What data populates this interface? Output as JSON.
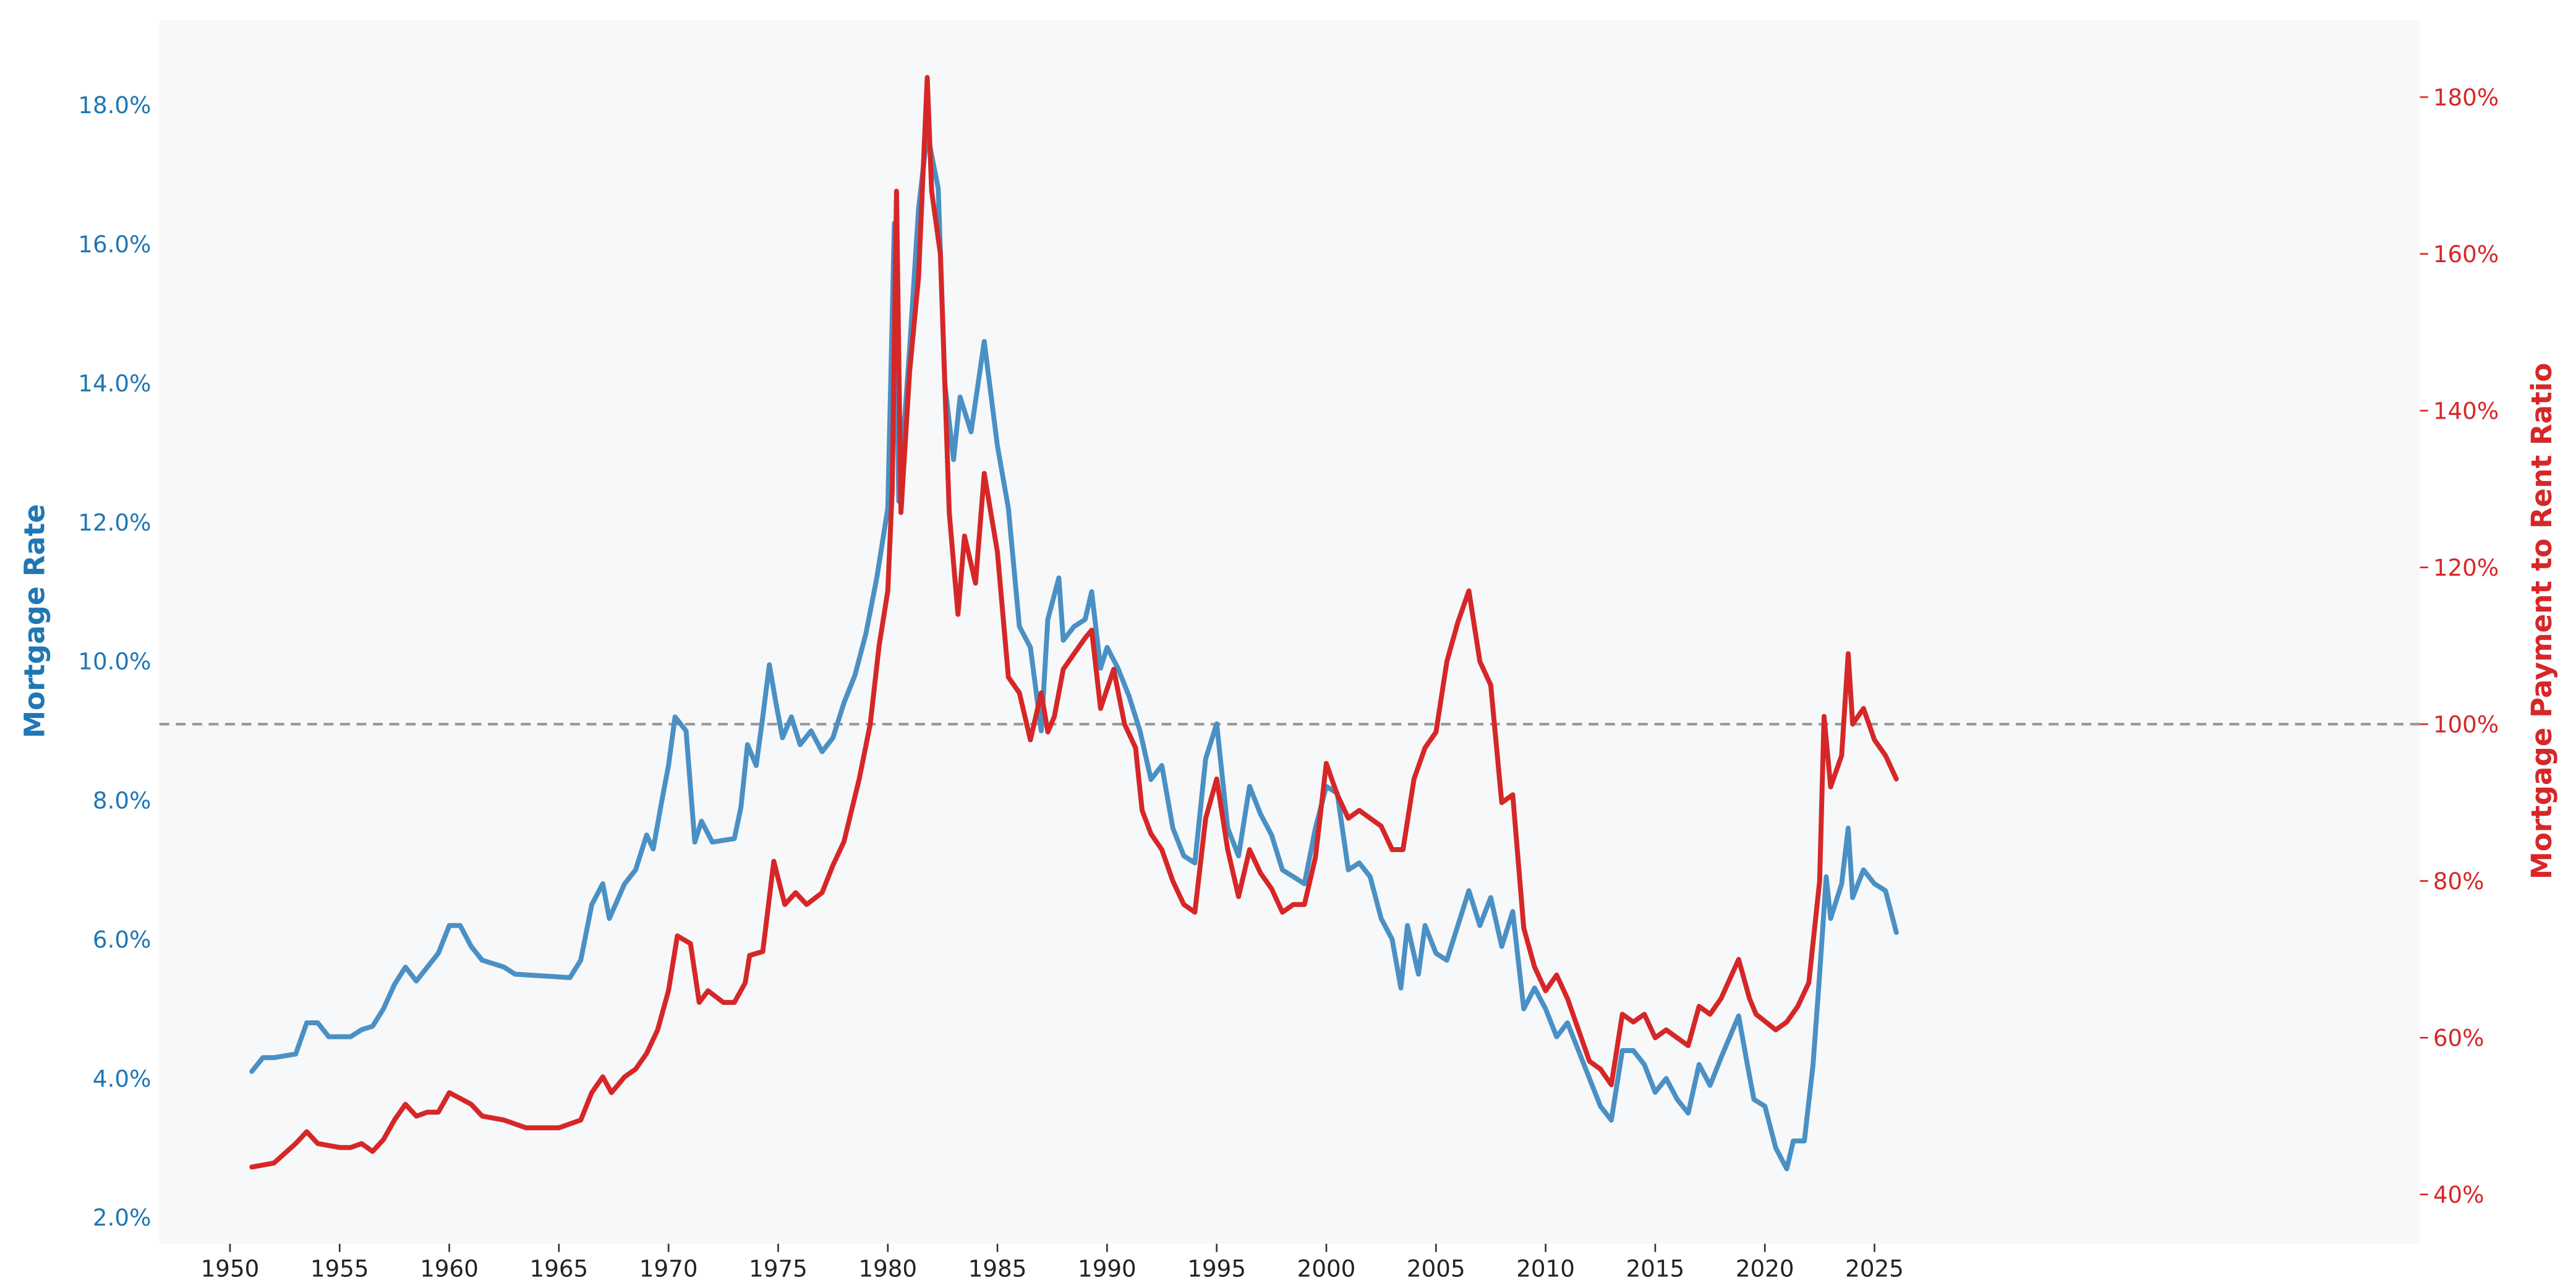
{
  "chart_data": {
    "type": "line",
    "title": "",
    "xlabel": "",
    "ylabel_left": "Mortgage Rate",
    "ylabel_right": "Mortgage Payment to Rent Ratio",
    "xlim": [
      1947.3,
      2029.5
    ],
    "ylim_left": [
      2.0,
      19.0
    ],
    "ylim_right": [
      40,
      188
    ],
    "x_ticks": [
      "1950",
      "1955",
      "1960",
      "1965",
      "1970",
      "1975",
      "1980",
      "1985",
      "1990",
      "1995",
      "2000",
      "2005",
      "2010",
      "2015",
      "2020",
      "2025"
    ],
    "y_ticks_left": [
      "2.0%",
      "4.0%",
      "6.0%",
      "8.0%",
      "10.0%",
      "12.0%",
      "14.0%",
      "16.0%",
      "18.0%"
    ],
    "y_ticks_right": [
      "40%",
      "60%",
      "80%",
      "100%",
      "120%",
      "140%",
      "160%",
      "180%"
    ],
    "reference_line": {
      "axis": "right",
      "value": 100,
      "style": "dashed",
      "color": "#999999"
    },
    "grid": false,
    "background": "#f7f8fa",
    "colors": {
      "left_axis": "#1f77b4",
      "right_axis": "#d62728",
      "rate_line": "#4a90c4",
      "ratio_line": "#d62728"
    },
    "series": [
      {
        "axis": "left",
        "color": "#4a90c4",
        "points": [
          [
            1951.0,
            4.1
          ],
          [
            1951.5,
            4.3
          ],
          [
            1952,
            4.3
          ],
          [
            1953,
            4.35
          ],
          [
            1953.5,
            4.8
          ],
          [
            1954,
            4.8
          ],
          [
            1954.5,
            4.6
          ],
          [
            1955.5,
            4.6
          ],
          [
            1956,
            4.7
          ],
          [
            1956.5,
            4.75
          ],
          [
            1957,
            5.0
          ],
          [
            1957.5,
            5.35
          ],
          [
            1958,
            5.6
          ],
          [
            1958.5,
            5.4
          ],
          [
            1959,
            5.6
          ],
          [
            1959.5,
            5.8
          ],
          [
            1960,
            6.2
          ],
          [
            1960.5,
            6.2
          ],
          [
            1961,
            5.9
          ],
          [
            1961.5,
            5.7
          ],
          [
            1962.5,
            5.6
          ],
          [
            1963,
            5.5
          ],
          [
            1965.5,
            5.45
          ],
          [
            1966,
            5.7
          ],
          [
            1966.5,
            6.5
          ],
          [
            1967,
            6.8
          ],
          [
            1967.3,
            6.3
          ],
          [
            1968,
            6.8
          ],
          [
            1968.5,
            7.0
          ],
          [
            1969,
            7.5
          ],
          [
            1969.3,
            7.3
          ],
          [
            1969.7,
            8.0
          ],
          [
            1970,
            8.5
          ],
          [
            1970.3,
            9.2
          ],
          [
            1970.8,
            9.0
          ],
          [
            1971.2,
            7.4
          ],
          [
            1971.5,
            7.7
          ],
          [
            1972,
            7.4
          ],
          [
            1973,
            7.45
          ],
          [
            1973.3,
            7.9
          ],
          [
            1973.6,
            8.8
          ],
          [
            1974,
            8.5
          ],
          [
            1974.3,
            9.2
          ],
          [
            1974.6,
            9.95
          ],
          [
            1974.9,
            9.4
          ],
          [
            1975.2,
            8.9
          ],
          [
            1975.6,
            9.2
          ],
          [
            1976,
            8.8
          ],
          [
            1976.5,
            9.0
          ],
          [
            1977,
            8.7
          ],
          [
            1977.5,
            8.9
          ],
          [
            1978,
            9.4
          ],
          [
            1978.5,
            9.8
          ],
          [
            1979,
            10.4
          ],
          [
            1979.5,
            11.2
          ],
          [
            1980,
            12.2
          ],
          [
            1980.3,
            16.3
          ],
          [
            1980.5,
            12.3
          ],
          [
            1981,
            14.5
          ],
          [
            1981.4,
            16.5
          ],
          [
            1981.8,
            17.6
          ],
          [
            1982.3,
            16.8
          ],
          [
            1982.6,
            14.0
          ],
          [
            1983,
            12.9
          ],
          [
            1983.3,
            13.8
          ],
          [
            1983.8,
            13.3
          ],
          [
            1984.4,
            14.6
          ],
          [
            1985,
            13.1
          ],
          [
            1985.5,
            12.2
          ],
          [
            1986,
            10.5
          ],
          [
            1986.5,
            10.2
          ],
          [
            1987,
            9.0
          ],
          [
            1987.3,
            10.6
          ],
          [
            1987.8,
            11.2
          ],
          [
            1988,
            10.3
          ],
          [
            1988.5,
            10.5
          ],
          [
            1989,
            10.6
          ],
          [
            1989.3,
            11.0
          ],
          [
            1989.7,
            9.9
          ],
          [
            1990,
            10.2
          ],
          [
            1990.5,
            9.9
          ],
          [
            1991,
            9.5
          ],
          [
            1991.5,
            9.0
          ],
          [
            1992,
            8.3
          ],
          [
            1992.5,
            8.5
          ],
          [
            1993,
            7.6
          ],
          [
            1993.5,
            7.2
          ],
          [
            1994,
            7.1
          ],
          [
            1994.5,
            8.6
          ],
          [
            1995,
            9.1
          ],
          [
            1995.5,
            7.6
          ],
          [
            1996,
            7.2
          ],
          [
            1996.5,
            8.2
          ],
          [
            1997,
            7.8
          ],
          [
            1997.5,
            7.5
          ],
          [
            1998,
            7.0
          ],
          [
            1998.5,
            6.9
          ],
          [
            1999,
            6.8
          ],
          [
            1999.5,
            7.6
          ],
          [
            2000,
            8.2
          ],
          [
            2000.5,
            8.1
          ],
          [
            2001,
            7.0
          ],
          [
            2001.5,
            7.1
          ],
          [
            2002,
            6.9
          ],
          [
            2002.5,
            6.3
          ],
          [
            2003,
            6.0
          ],
          [
            2003.4,
            5.3
          ],
          [
            2003.7,
            6.2
          ],
          [
            2004.2,
            5.5
          ],
          [
            2004.5,
            6.2
          ],
          [
            2005,
            5.8
          ],
          [
            2005.5,
            5.7
          ],
          [
            2006,
            6.2
          ],
          [
            2006.5,
            6.7
          ],
          [
            2007,
            6.2
          ],
          [
            2007.5,
            6.6
          ],
          [
            2008,
            5.9
          ],
          [
            2008.5,
            6.4
          ],
          [
            2009,
            5.0
          ],
          [
            2009.5,
            5.3
          ],
          [
            2010,
            5.0
          ],
          [
            2010.5,
            4.6
          ],
          [
            2011,
            4.8
          ],
          [
            2011.5,
            4.4
          ],
          [
            2012,
            4.0
          ],
          [
            2012.5,
            3.6
          ],
          [
            2013,
            3.4
          ],
          [
            2013.5,
            4.4
          ],
          [
            2014,
            4.4
          ],
          [
            2014.5,
            4.2
          ],
          [
            2015,
            3.8
          ],
          [
            2015.5,
            4.0
          ],
          [
            2016,
            3.7
          ],
          [
            2016.5,
            3.5
          ],
          [
            2017,
            4.2
          ],
          [
            2017.5,
            3.9
          ],
          [
            2018,
            4.3
          ],
          [
            2018.8,
            4.9
          ],
          [
            2019.2,
            4.2
          ],
          [
            2019.5,
            3.7
          ],
          [
            2020,
            3.6
          ],
          [
            2020.5,
            3.0
          ],
          [
            2021,
            2.7
          ],
          [
            2021.3,
            3.1
          ],
          [
            2021.8,
            3.1
          ],
          [
            2022.2,
            4.2
          ],
          [
            2022.5,
            5.5
          ],
          [
            2022.8,
            6.9
          ],
          [
            2023,
            6.3
          ],
          [
            2023.5,
            6.8
          ],
          [
            2023.8,
            7.6
          ],
          [
            2024,
            6.6
          ],
          [
            2024.5,
            7.0
          ],
          [
            2025,
            6.8
          ],
          [
            2025.5,
            6.7
          ],
          [
            2026,
            6.1
          ]
        ]
      },
      {
        "axis": "right",
        "color": "#d62728",
        "points": [
          [
            1951,
            43.5
          ],
          [
            1952,
            44
          ],
          [
            1953,
            46.5
          ],
          [
            1953.5,
            48
          ],
          [
            1954,
            46.5
          ],
          [
            1955,
            46
          ],
          [
            1955.5,
            46
          ],
          [
            1956,
            46.5
          ],
          [
            1956.5,
            45.5
          ],
          [
            1957,
            47
          ],
          [
            1957.5,
            49.5
          ],
          [
            1958,
            51.5
          ],
          [
            1958.5,
            50
          ],
          [
            1959,
            50.5
          ],
          [
            1959.5,
            50.5
          ],
          [
            1960,
            53
          ],
          [
            1961,
            51.5
          ],
          [
            1961.5,
            50
          ],
          [
            1962.5,
            49.5
          ],
          [
            1963.5,
            48.5
          ],
          [
            1965,
            48.5
          ],
          [
            1966,
            49.5
          ],
          [
            1966.5,
            53
          ],
          [
            1967,
            55
          ],
          [
            1967.4,
            53
          ],
          [
            1968,
            55
          ],
          [
            1968.5,
            56
          ],
          [
            1969,
            58
          ],
          [
            1969.5,
            61
          ],
          [
            1970,
            66
          ],
          [
            1970.4,
            73
          ],
          [
            1971,
            72
          ],
          [
            1971.4,
            64.5
          ],
          [
            1971.8,
            66
          ],
          [
            1972.5,
            64.5
          ],
          [
            1973,
            64.5
          ],
          [
            1973.5,
            67
          ],
          [
            1973.7,
            70.5
          ],
          [
            1974.3,
            71
          ],
          [
            1974.8,
            82.5
          ],
          [
            1975.3,
            77
          ],
          [
            1975.8,
            78.5
          ],
          [
            1976.3,
            77
          ],
          [
            1977,
            78.5
          ],
          [
            1977.5,
            82
          ],
          [
            1978,
            85
          ],
          [
            1978.7,
            93
          ],
          [
            1979.2,
            100
          ],
          [
            1979.6,
            110
          ],
          [
            1980,
            117
          ],
          [
            1980.2,
            130
          ],
          [
            1980.4,
            168
          ],
          [
            1980.6,
            127
          ],
          [
            1981,
            145
          ],
          [
            1981.4,
            157
          ],
          [
            1981.8,
            182.5
          ],
          [
            1982.0,
            168
          ],
          [
            1982.4,
            160
          ],
          [
            1982.8,
            127
          ],
          [
            1983.2,
            114
          ],
          [
            1983.5,
            124
          ],
          [
            1984,
            118
          ],
          [
            1984.4,
            132
          ],
          [
            1985,
            122
          ],
          [
            1985.5,
            106
          ],
          [
            1986,
            104
          ],
          [
            1986.5,
            98
          ],
          [
            1987,
            104
          ],
          [
            1987.3,
            99
          ],
          [
            1987.6,
            101
          ],
          [
            1988,
            107
          ],
          [
            1988.5,
            109
          ],
          [
            1989,
            111
          ],
          [
            1989.3,
            112
          ],
          [
            1989.7,
            102
          ],
          [
            1990.3,
            107
          ],
          [
            1990.8,
            100
          ],
          [
            1991.3,
            97
          ],
          [
            1991.6,
            89
          ],
          [
            1992,
            86
          ],
          [
            1992.5,
            84
          ],
          [
            1993,
            80
          ],
          [
            1993.5,
            77
          ],
          [
            1994,
            76
          ],
          [
            1994.5,
            88
          ],
          [
            1995,
            93
          ],
          [
            1995.5,
            84
          ],
          [
            1996,
            78
          ],
          [
            1996.5,
            84
          ],
          [
            1997,
            81
          ],
          [
            1997.5,
            79
          ],
          [
            1998,
            76
          ],
          [
            1998.5,
            77
          ],
          [
            1999,
            77
          ],
          [
            1999.5,
            83
          ],
          [
            2000,
            95
          ],
          [
            2000.5,
            91
          ],
          [
            2001,
            88
          ],
          [
            2001.5,
            89
          ],
          [
            2002,
            88
          ],
          [
            2002.5,
            87
          ],
          [
            2003,
            84
          ],
          [
            2003.5,
            84
          ],
          [
            2004,
            93
          ],
          [
            2004.5,
            97
          ],
          [
            2005,
            99
          ],
          [
            2005.5,
            108
          ],
          [
            2006,
            113
          ],
          [
            2006.5,
            117
          ],
          [
            2007,
            108
          ],
          [
            2007.5,
            105
          ],
          [
            2008,
            90
          ],
          [
            2008.5,
            91
          ],
          [
            2009,
            74
          ],
          [
            2009.5,
            69
          ],
          [
            2010,
            66
          ],
          [
            2010.5,
            68
          ],
          [
            2011,
            65
          ],
          [
            2011.5,
            61
          ],
          [
            2012,
            57
          ],
          [
            2012.5,
            56
          ],
          [
            2013,
            54
          ],
          [
            2013.5,
            63
          ],
          [
            2014,
            62
          ],
          [
            2014.5,
            63
          ],
          [
            2015,
            60
          ],
          [
            2015.5,
            61
          ],
          [
            2016,
            60
          ],
          [
            2016.5,
            59
          ],
          [
            2017,
            64
          ],
          [
            2017.5,
            63
          ],
          [
            2018,
            65
          ],
          [
            2018.8,
            70
          ],
          [
            2019.3,
            65
          ],
          [
            2019.6,
            63
          ],
          [
            2020.5,
            61
          ],
          [
            2021,
            62
          ],
          [
            2021.5,
            64
          ],
          [
            2022,
            67
          ],
          [
            2022.5,
            80
          ],
          [
            2022.7,
            101
          ],
          [
            2023,
            92
          ],
          [
            2023.5,
            96
          ],
          [
            2023.8,
            109
          ],
          [
            2024,
            100
          ],
          [
            2024.5,
            102
          ],
          [
            2025,
            98
          ],
          [
            2025.5,
            96
          ],
          [
            2026,
            93
          ]
        ]
      }
    ]
  }
}
